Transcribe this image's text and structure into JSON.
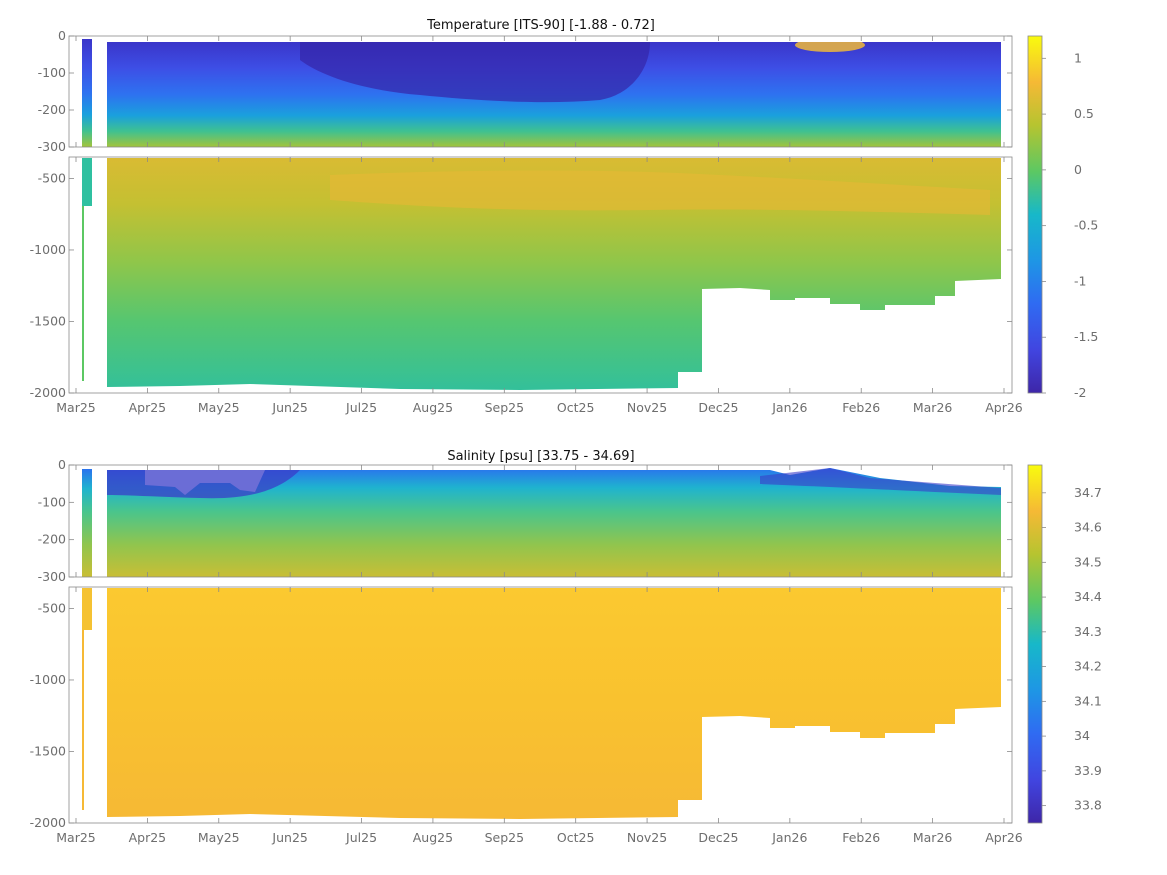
{
  "chart_data": [
    {
      "type": "heatmap",
      "title": "Temperature [ITS-90]   [-1.88 -  0.72]",
      "variable": "temperature",
      "units": "ITS-90",
      "data_range": [
        -1.88,
        0.72
      ],
      "x_ticks": [
        "Mar25",
        "Apr25",
        "May25",
        "Jun25",
        "Jul25",
        "Aug25",
        "Sep25",
        "Oct25",
        "Nov25",
        "Dec25",
        "Jan26",
        "Feb26",
        "Mar26",
        "Apr26"
      ],
      "upper_panel": {
        "ylim": [
          -300,
          0
        ],
        "y_ticks": [
          0,
          -100,
          -200,
          -300
        ]
      },
      "lower_panel": {
        "ylim": [
          -2000,
          -350
        ],
        "y_ticks": [
          -500,
          -1000,
          -1500,
          -2000
        ]
      },
      "colorbar": {
        "clim": [
          -2,
          1.2
        ],
        "ticks": [
          1,
          0.5,
          0,
          -0.5,
          -1,
          -1.5,
          -2
        ]
      }
    },
    {
      "type": "heatmap",
      "title": "Salinity [psu]   [33.75 - 34.69]",
      "variable": "salinity",
      "units": "psu",
      "data_range": [
        33.75,
        34.69
      ],
      "x_ticks": [
        "Mar25",
        "Apr25",
        "May25",
        "Jun25",
        "Jul25",
        "Aug25",
        "Sep25",
        "Oct25",
        "Nov25",
        "Dec25",
        "Jan26",
        "Feb26",
        "Mar26",
        "Apr26"
      ],
      "upper_panel": {
        "ylim": [
          -300,
          0
        ],
        "y_ticks": [
          0,
          -100,
          -200,
          -300
        ]
      },
      "lower_panel": {
        "ylim": [
          -2000,
          -350
        ],
        "y_ticks": [
          -500,
          -1000,
          -1500,
          -2000
        ]
      },
      "colorbar": {
        "clim": [
          33.75,
          34.78
        ],
        "ticks": [
          34.7,
          34.6,
          34.5,
          34.4,
          34.3,
          34.2,
          34.1,
          34,
          33.9,
          33.8
        ]
      }
    }
  ],
  "colors": {
    "deep_purple": "#3e26a8",
    "blue": "#2f6bf2",
    "cyan": "#17b8c9",
    "green": "#5cc863",
    "yellow_green": "#b6c430",
    "orange": "#f5b935",
    "gold": "#fbc82e",
    "yellow": "#f9fb0e"
  }
}
